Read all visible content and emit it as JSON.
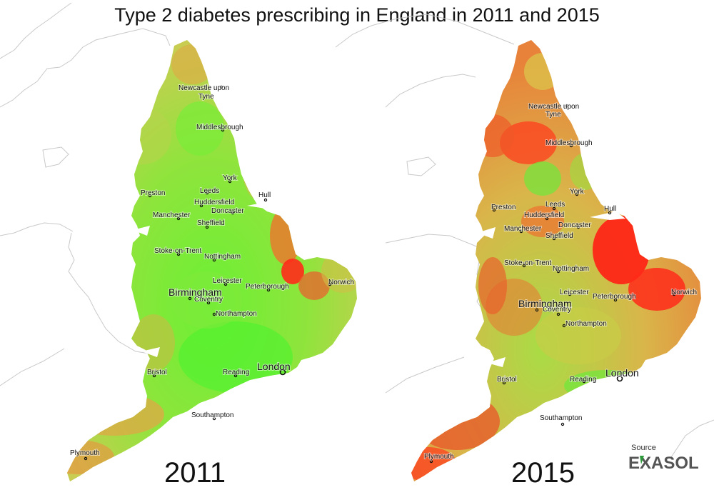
{
  "title": "Type 2 diabetes prescribing in England in 2011 and 2015",
  "colors": {
    "low": "#66ee33",
    "mid": "#c8d64a",
    "high": "#e8872c",
    "veryhigh": "#ff2a1a",
    "coast": "#c9c9c9"
  },
  "maps": [
    {
      "year": "2011",
      "cities": [
        {
          "name": "Newcastle upon",
          "name2": "Tyne"
        },
        {
          "name": "Middlesbrough"
        },
        {
          "name": "York"
        },
        {
          "name": "Preston"
        },
        {
          "name": "Leeds"
        },
        {
          "name": "Hull"
        },
        {
          "name": "Huddersfield"
        },
        {
          "name": "Manchester"
        },
        {
          "name": "Doncaster"
        },
        {
          "name": "Sheffield"
        },
        {
          "name": "Stoke-on-Trent"
        },
        {
          "name": "Nottingham"
        },
        {
          "name": "Leicester"
        },
        {
          "name": "Peterborough"
        },
        {
          "name": "Norwich"
        },
        {
          "name": "Birmingham"
        },
        {
          "name": "Coventry"
        },
        {
          "name": "Northampton"
        },
        {
          "name": "London"
        },
        {
          "name": "Bristol"
        },
        {
          "name": "Reading"
        },
        {
          "name": "Southampton"
        },
        {
          "name": "Plymouth"
        }
      ]
    },
    {
      "year": "2015",
      "cities": [
        {
          "name": "Newcastle upon",
          "name2": "Tyne"
        },
        {
          "name": "Middlesbrough"
        },
        {
          "name": "York"
        },
        {
          "name": "Preston"
        },
        {
          "name": "Leeds"
        },
        {
          "name": "Hull"
        },
        {
          "name": "Huddersfield"
        },
        {
          "name": "Manchester"
        },
        {
          "name": "Doncaster"
        },
        {
          "name": "Sheffield"
        },
        {
          "name": "Stoke-on-Trent"
        },
        {
          "name": "Nottingham"
        },
        {
          "name": "Leicester"
        },
        {
          "name": "Peterborough"
        },
        {
          "name": "Norwich"
        },
        {
          "name": "Birmingham"
        },
        {
          "name": "Coventry"
        },
        {
          "name": "Northampton"
        },
        {
          "name": "London"
        },
        {
          "name": "Bristol"
        },
        {
          "name": "Reading"
        },
        {
          "name": "Southampton"
        },
        {
          "name": "Plymouth"
        }
      ]
    }
  ],
  "logo": {
    "source_label": "Source",
    "brand": "EXASOL"
  }
}
